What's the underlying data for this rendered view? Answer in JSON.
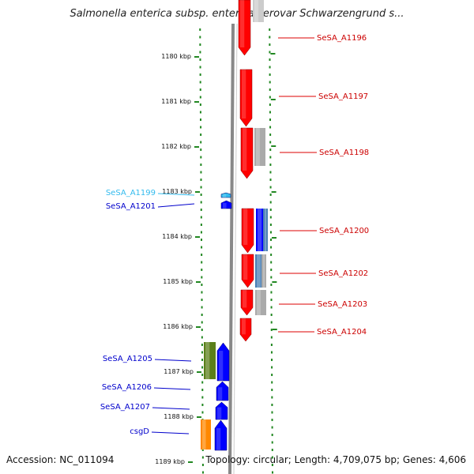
{
  "title": "Salmonella enterica subsp. enterica serovar Schwarzengrund s...",
  "footer": {
    "accession": "Accession: NC_011094",
    "summary": "Topology: circular; Length: 4,709,075 bp; Genes: 4,606"
  },
  "colors": {
    "forward_gene": "#ff0000",
    "reverse_gene": "#0000ff",
    "light_gene": "#33bbee",
    "steel_gene": "#4a7fb5",
    "grey_gene": "#aaaaaa",
    "olive_gene": "#5b7f1a",
    "orange_gene": "#ff8800",
    "backbone": "#888888",
    "ruler_dots": "#228822"
  },
  "ruler": {
    "labels": [
      "1180 kbp",
      "1181 kbp",
      "1182 kbp",
      "1183 kbp",
      "1184 kbp",
      "1185 kbp",
      "1186 kbp",
      "1187 kbp",
      "1188 kbp",
      "1189 kbp"
    ]
  },
  "genes_right": [
    {
      "name": "SeSA_A1196"
    },
    {
      "name": "SeSA_A1197"
    },
    {
      "name": "SeSA_A1198"
    },
    {
      "name": "SeSA_A1200"
    },
    {
      "name": "SeSA_A1202"
    },
    {
      "name": "SeSA_A1203"
    },
    {
      "name": "SeSA_A1204"
    }
  ],
  "genes_left": [
    {
      "name": "SeSA_A1199"
    },
    {
      "name": "SeSA_A1201"
    },
    {
      "name": "SeSA_A1205"
    },
    {
      "name": "SeSA_A1206"
    },
    {
      "name": "SeSA_A1207"
    },
    {
      "name": "csgD"
    }
  ]
}
